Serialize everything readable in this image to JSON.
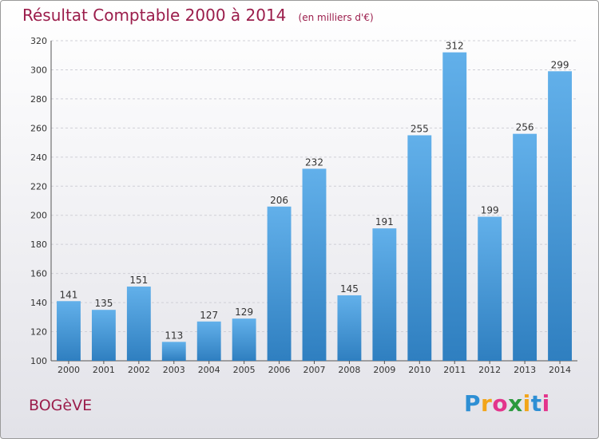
{
  "title": "Résultat Comptable 2000 à 2014",
  "subtitle": "(en milliers d'€)",
  "place": "BOGèVE",
  "brand": {
    "letters": [
      "P",
      "r",
      "o",
      "x",
      "i",
      "t",
      "i"
    ],
    "colors": [
      "#2e8fd4",
      "#f2a51a",
      "#e3358c",
      "#2b9a3e",
      "#f2a51a",
      "#2e8fd4",
      "#e3358c"
    ]
  },
  "colors": {
    "title": "#9b1d4b",
    "bar_light": "#62b0ea",
    "bar_dark": "#2f7fc0",
    "grid": "#cfcfd6"
  },
  "chart_data": {
    "type": "bar",
    "categories": [
      "2000",
      "2001",
      "2002",
      "2003",
      "2004",
      "2005",
      "2006",
      "2007",
      "2008",
      "2009",
      "2010",
      "2011",
      "2012",
      "2013",
      "2014"
    ],
    "values": [
      141,
      135,
      151,
      113,
      127,
      129,
      206,
      232,
      145,
      191,
      255,
      312,
      199,
      256,
      299
    ],
    "y_ticks": [
      100,
      120,
      140,
      160,
      180,
      200,
      220,
      240,
      260,
      280,
      300,
      320
    ],
    "ylim": [
      100,
      320
    ],
    "grid": true,
    "data_labels": true
  }
}
